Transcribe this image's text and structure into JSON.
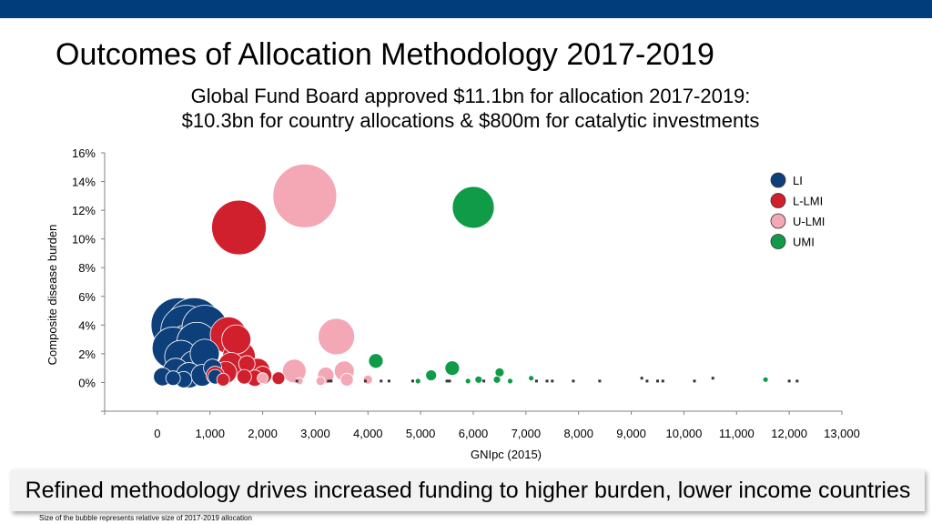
{
  "page": {
    "title": "Outcomes of Allocation Methodology 2017-2019",
    "subtitle_line1": "Global Fund Board approved $11.1bn for allocation 2017-2019:",
    "subtitle_line2": "$10.3bn for country allocations & $800m for catalytic investments",
    "callout": "Refined methodology drives increased funding to higher burden, lower income countries",
    "footnote": "Size of the bubble represents relative size of 2017-2019 allocation"
  },
  "colors": {
    "header_bar": "#003d7a",
    "LI": "#0d3f7a",
    "L-LMI": "#d0202e",
    "U-LMI": "#f4a7b5",
    "UMI": "#0f9b48"
  },
  "chart_data": {
    "type": "scatter",
    "subtype": "bubble",
    "xlabel": "GNIpc (2015)",
    "ylabel": "Composite disease burden",
    "xlim": [
      -1000,
      13000
    ],
    "ylim": [
      -2,
      16
    ],
    "xticks": [
      0,
      1000,
      2000,
      3000,
      4000,
      5000,
      6000,
      7000,
      8000,
      9000,
      10000,
      11000,
      12000,
      13000
    ],
    "xtick_labels": [
      "0",
      "1,000",
      "2,000",
      "3,000",
      "4,000",
      "5,000",
      "6,000",
      "7,000",
      "8,000",
      "9,000",
      "10,000",
      "11,000",
      "12,000",
      "13,000"
    ],
    "yticks": [
      -2,
      0,
      2,
      4,
      6,
      8,
      10,
      12,
      14,
      16
    ],
    "ytick_labels": [
      "",
      "0%",
      "2%",
      "4%",
      "6%",
      "8%",
      "10%",
      "12%",
      "14%",
      "16%"
    ],
    "legend_position": "top-right",
    "series": [
      {
        "name": "LI",
        "points": [
          [
            400,
            4.0,
            30
          ],
          [
            700,
            4.0,
            30
          ],
          [
            550,
            3.6,
            28
          ],
          [
            900,
            3.8,
            25
          ],
          [
            300,
            2.4,
            23
          ],
          [
            600,
            2.4,
            26
          ],
          [
            750,
            2.8,
            22
          ],
          [
            450,
            1.8,
            18
          ],
          [
            700,
            1.2,
            16
          ],
          [
            900,
            2.0,
            16
          ],
          [
            350,
            0.8,
            14
          ],
          [
            600,
            0.5,
            14
          ],
          [
            850,
            0.5,
            12
          ],
          [
            100,
            0.4,
            10
          ],
          [
            500,
            0.2,
            9
          ],
          [
            300,
            0.3,
            8
          ],
          [
            1050,
            1.0,
            10
          ],
          [
            1100,
            0.4,
            8
          ]
        ]
      },
      {
        "name": "L-LMI",
        "points": [
          [
            1550,
            10.8,
            30
          ],
          [
            1350,
            3.3,
            20
          ],
          [
            1500,
            3.0,
            16
          ],
          [
            1550,
            1.8,
            18
          ],
          [
            1400,
            1.2,
            14
          ],
          [
            1300,
            0.7,
            12
          ],
          [
            1100,
            0.5,
            10
          ],
          [
            1900,
            0.8,
            14
          ],
          [
            2000,
            0.5,
            10
          ],
          [
            1850,
            0.3,
            9
          ],
          [
            1650,
            0.4,
            8
          ],
          [
            2300,
            0.3,
            7
          ],
          [
            1700,
            1.3,
            9
          ],
          [
            1250,
            0.2,
            7
          ]
        ]
      },
      {
        "name": "U-LMI",
        "points": [
          [
            2800,
            13.0,
            35
          ],
          [
            3400,
            3.2,
            20
          ],
          [
            2600,
            0.8,
            13
          ],
          [
            3550,
            0.8,
            11
          ],
          [
            3200,
            0.5,
            9
          ],
          [
            3600,
            0.2,
            7
          ],
          [
            2000,
            0.3,
            6
          ],
          [
            3100,
            0.1,
            5
          ],
          [
            4000,
            0.2,
            5
          ],
          [
            2700,
            0.1,
            4
          ]
        ]
      },
      {
        "name": "UMI",
        "points": [
          [
            6000,
            12.2,
            23
          ],
          [
            4150,
            1.5,
            8
          ],
          [
            5600,
            1.0,
            8
          ],
          [
            5200,
            0.5,
            6
          ],
          [
            6500,
            0.7,
            5
          ],
          [
            6100,
            0.2,
            4
          ],
          [
            6450,
            0.2,
            4
          ],
          [
            5900,
            0.1,
            3
          ],
          [
            7100,
            0.3,
            3
          ],
          [
            11550,
            0.2,
            3
          ],
          [
            4950,
            0.1,
            3
          ],
          [
            6700,
            0.1,
            3
          ]
        ]
      }
    ],
    "small_markers": [
      [
        2650,
        0.1
      ],
      [
        3250,
        0.1
      ],
      [
        3300,
        0.1
      ],
      [
        3950,
        0.1
      ],
      [
        4250,
        0.1
      ],
      [
        4400,
        0.1
      ],
      [
        4850,
        0.1
      ],
      [
        5500,
        0.1
      ],
      [
        5550,
        0.1
      ],
      [
        6200,
        0.1
      ],
      [
        7200,
        0.1
      ],
      [
        7400,
        0.1
      ],
      [
        7500,
        0.1
      ],
      [
        7900,
        0.1
      ],
      [
        8400,
        0.1
      ],
      [
        9200,
        0.3
      ],
      [
        9300,
        0.1
      ],
      [
        9500,
        0.1
      ],
      [
        9600,
        0.1
      ],
      [
        10200,
        0.1
      ],
      [
        10550,
        0.3
      ],
      [
        12000,
        0.1
      ],
      [
        12150,
        0.1
      ]
    ]
  }
}
